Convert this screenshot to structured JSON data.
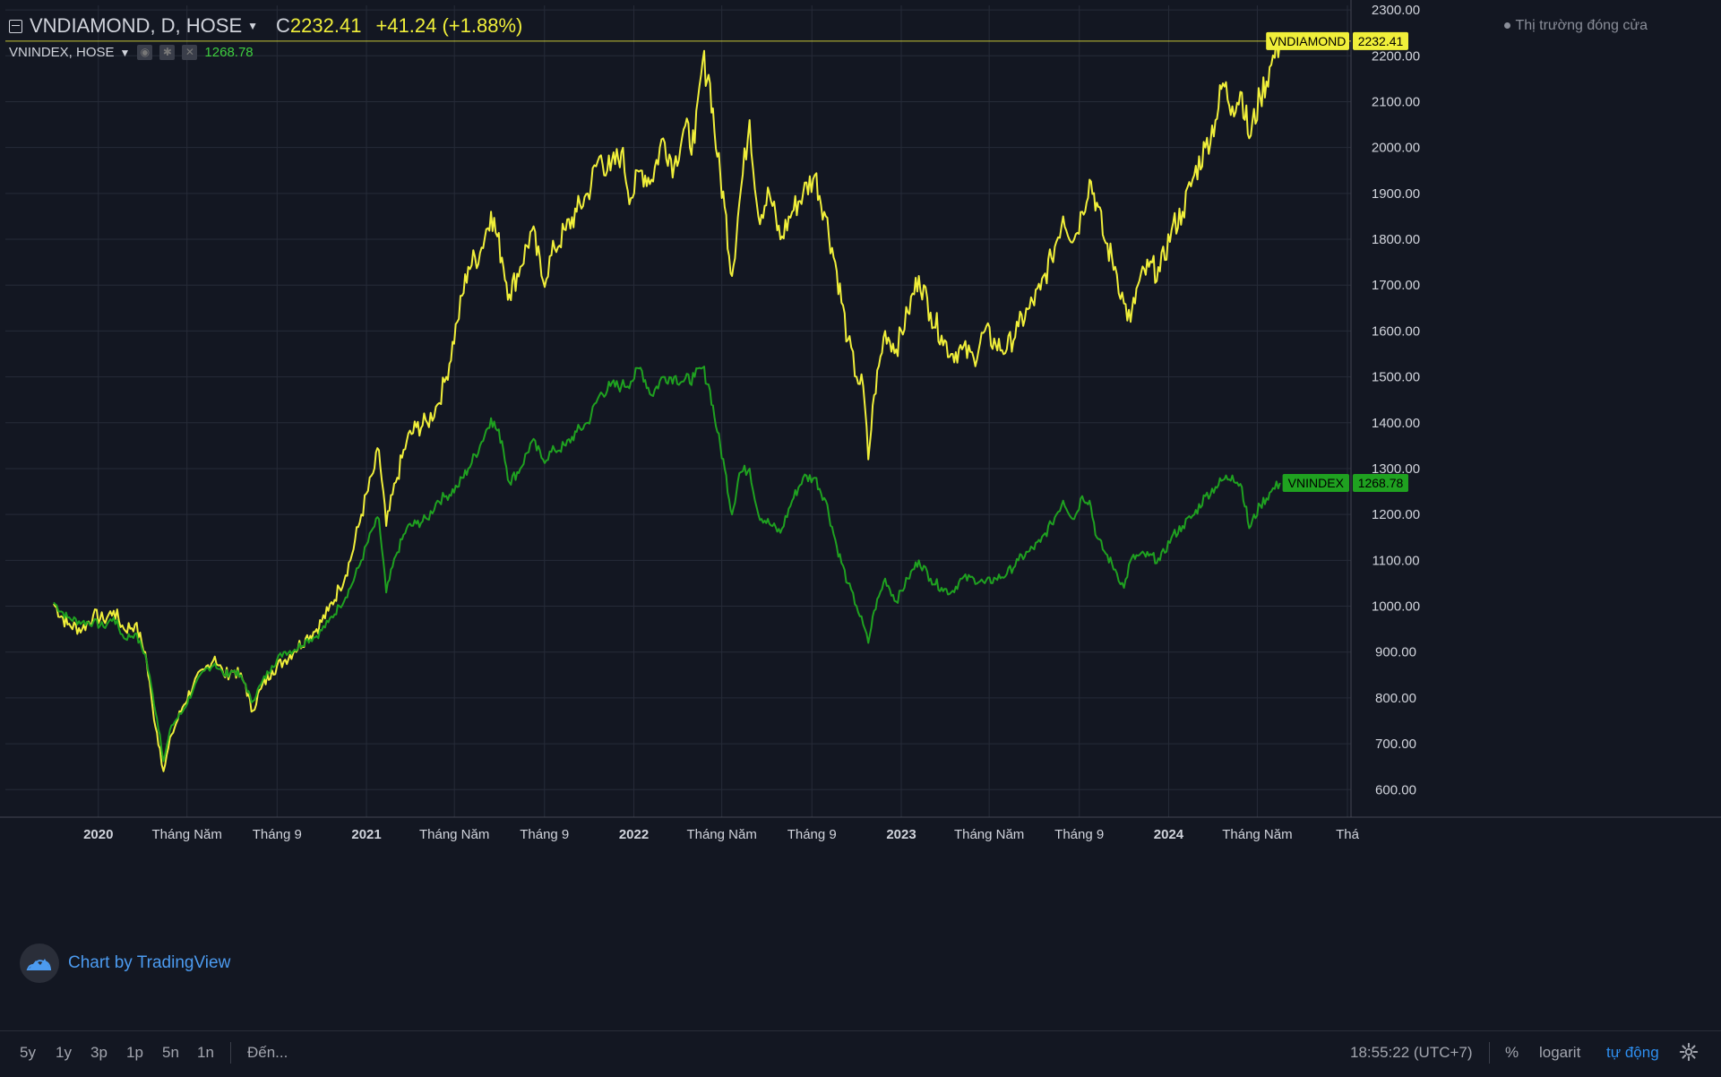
{
  "header": {
    "symbol": "VNDIAMOND, D, HOSE",
    "close_prefix": "C",
    "close_value": "2232.41",
    "change": "+41.24 (+1.88%)",
    "compare_symbol": "VNINDEX, HOSE",
    "compare_value": "1268.78",
    "market_status": "Thị trường đóng cửa"
  },
  "logo": {
    "text": "Chart by TradingView"
  },
  "bottom_bar": {
    "ranges": [
      "5y",
      "1y",
      "3p",
      "1p",
      "5n",
      "1n"
    ],
    "goto": "Đến...",
    "time": "18:55:22 (UTC+7)",
    "percent": "%",
    "log": "logarit",
    "auto": "tự động"
  },
  "colors": {
    "background": "#131722",
    "vndiamond": "#f0ef3a",
    "vnindex": "#1fa120",
    "grid": "#262b38",
    "logo": "#4c9bf0"
  },
  "chart_data": {
    "type": "line",
    "x_axis": {
      "type": "date",
      "range": [
        "2019-09-01",
        "2024-09-01"
      ]
    },
    "y_axis": {
      "position": "right",
      "range": [
        540,
        2310
      ],
      "ticks": [
        "600.00",
        "700.00",
        "800.00",
        "900.00",
        "1000.00",
        "1100.00",
        "1200.00",
        "1300.00",
        "1400.00",
        "1500.00",
        "1600.00",
        "1700.00",
        "1800.00",
        "1900.00",
        "2000.00",
        "2100.00",
        "2200.00",
        "2300.00"
      ]
    },
    "x_ticks": [
      {
        "label": "2020",
        "date": "2020-01-01",
        "bold": true
      },
      {
        "label": "Tháng Năm",
        "date": "2020-05-01",
        "bold": false
      },
      {
        "label": "Tháng 9",
        "date": "2020-09-01",
        "bold": false
      },
      {
        "label": "2021",
        "date": "2021-01-01",
        "bold": true
      },
      {
        "label": "Tháng Năm",
        "date": "2021-05-01",
        "bold": false
      },
      {
        "label": "Tháng 9",
        "date": "2021-09-01",
        "bold": false
      },
      {
        "label": "2022",
        "date": "2022-01-01",
        "bold": true
      },
      {
        "label": "Tháng Năm",
        "date": "2022-05-01",
        "bold": false
      },
      {
        "label": "Tháng 9",
        "date": "2022-09-01",
        "bold": false
      },
      {
        "label": "2023",
        "date": "2023-01-01",
        "bold": true
      },
      {
        "label": "Tháng Năm",
        "date": "2023-05-01",
        "bold": false
      },
      {
        "label": "Tháng 9",
        "date": "2023-09-01",
        "bold": false
      },
      {
        "label": "2024",
        "date": "2024-01-01",
        "bold": true
      },
      {
        "label": "Tháng Năm",
        "date": "2024-05-01",
        "bold": false
      },
      {
        "label": "Thá",
        "date": "2024-09-01",
        "bold": false
      }
    ],
    "grid": true,
    "series": [
      {
        "name": "VNDIAMOND",
        "color": "#f0ef3a",
        "last_value": "2232.41",
        "points": [
          [
            "2019-11-01",
            1005
          ],
          [
            "2019-11-20",
            960
          ],
          [
            "2019-12-10",
            950
          ],
          [
            "2019-12-25",
            980
          ],
          [
            "2020-01-08",
            970
          ],
          [
            "2020-01-22",
            990
          ],
          [
            "2020-02-05",
            950
          ],
          [
            "2020-02-20",
            960
          ],
          [
            "2020-03-05",
            900
          ],
          [
            "2020-03-15",
            780
          ],
          [
            "2020-03-25",
            690
          ],
          [
            "2020-03-30",
            640
          ],
          [
            "2020-04-10",
            720
          ],
          [
            "2020-04-25",
            780
          ],
          [
            "2020-05-10",
            830
          ],
          [
            "2020-05-25",
            860
          ],
          [
            "2020-06-08",
            890
          ],
          [
            "2020-06-20",
            850
          ],
          [
            "2020-07-05",
            860
          ],
          [
            "2020-07-20",
            830
          ],
          [
            "2020-07-28",
            770
          ],
          [
            "2020-08-10",
            820
          ],
          [
            "2020-08-25",
            860
          ],
          [
            "2020-09-10",
            880
          ],
          [
            "2020-09-25",
            905
          ],
          [
            "2020-10-10",
            930
          ],
          [
            "2020-10-25",
            950
          ],
          [
            "2020-11-10",
            990
          ],
          [
            "2020-11-25",
            1040
          ],
          [
            "2020-12-10",
            1100
          ],
          [
            "2020-12-25",
            1200
          ],
          [
            "2021-01-10",
            1290
          ],
          [
            "2021-01-18",
            1340
          ],
          [
            "2021-01-28",
            1175
          ],
          [
            "2021-02-10",
            1270
          ],
          [
            "2021-02-25",
            1360
          ],
          [
            "2021-03-10",
            1390
          ],
          [
            "2021-03-25",
            1400
          ],
          [
            "2021-04-08",
            1440
          ],
          [
            "2021-04-20",
            1500
          ],
          [
            "2021-05-05",
            1620
          ],
          [
            "2021-05-20",
            1740
          ],
          [
            "2021-06-05",
            1770
          ],
          [
            "2021-06-20",
            1860
          ],
          [
            "2021-07-05",
            1760
          ],
          [
            "2021-07-15",
            1680
          ],
          [
            "2021-07-30",
            1740
          ],
          [
            "2021-08-15",
            1820
          ],
          [
            "2021-08-30",
            1710
          ],
          [
            "2021-09-15",
            1780
          ],
          [
            "2021-09-30",
            1820
          ],
          [
            "2021-10-15",
            1860
          ],
          [
            "2021-10-30",
            1900
          ],
          [
            "2021-11-15",
            1980
          ],
          [
            "2021-11-30",
            1950
          ],
          [
            "2021-12-15",
            1990
          ],
          [
            "2021-12-28",
            1890
          ],
          [
            "2022-01-10",
            1950
          ],
          [
            "2022-01-25",
            1930
          ],
          [
            "2022-02-10",
            2020
          ],
          [
            "2022-02-25",
            1960
          ],
          [
            "2022-03-10",
            2040
          ],
          [
            "2022-03-25",
            2010
          ],
          [
            "2022-04-05",
            2190
          ],
          [
            "2022-04-15",
            2140
          ],
          [
            "2022-04-25",
            1980
          ],
          [
            "2022-05-05",
            1870
          ],
          [
            "2022-05-15",
            1720
          ],
          [
            "2022-05-25",
            1880
          ],
          [
            "2022-06-08",
            2060
          ],
          [
            "2022-06-20",
            1850
          ],
          [
            "2022-07-05",
            1900
          ],
          [
            "2022-07-20",
            1800
          ],
          [
            "2022-08-05",
            1860
          ],
          [
            "2022-08-20",
            1900
          ],
          [
            "2022-09-05",
            1940
          ],
          [
            "2022-09-20",
            1850
          ],
          [
            "2022-10-05",
            1730
          ],
          [
            "2022-10-20",
            1580
          ],
          [
            "2022-11-01",
            1500
          ],
          [
            "2022-11-10",
            1480
          ],
          [
            "2022-11-17",
            1320
          ],
          [
            "2022-11-25",
            1460
          ],
          [
            "2022-12-10",
            1600
          ],
          [
            "2022-12-25",
            1560
          ],
          [
            "2023-01-10",
            1640
          ],
          [
            "2023-01-25",
            1720
          ],
          [
            "2023-02-10",
            1640
          ],
          [
            "2023-02-25",
            1590
          ],
          [
            "2023-03-10",
            1550
          ],
          [
            "2023-03-25",
            1560
          ],
          [
            "2023-04-10",
            1540
          ],
          [
            "2023-04-25",
            1600
          ],
          [
            "2023-05-10",
            1570
          ],
          [
            "2023-05-25",
            1560
          ],
          [
            "2023-06-10",
            1610
          ],
          [
            "2023-06-25",
            1650
          ],
          [
            "2023-07-10",
            1690
          ],
          [
            "2023-07-25",
            1760
          ],
          [
            "2023-08-10",
            1850
          ],
          [
            "2023-08-25",
            1800
          ],
          [
            "2023-09-05",
            1860
          ],
          [
            "2023-09-15",
            1930
          ],
          [
            "2023-09-25",
            1880
          ],
          [
            "2023-10-05",
            1800
          ],
          [
            "2023-10-20",
            1740
          ],
          [
            "2023-11-01",
            1660
          ],
          [
            "2023-11-10",
            1620
          ],
          [
            "2023-11-20",
            1700
          ],
          [
            "2023-12-05",
            1740
          ],
          [
            "2023-12-20",
            1730
          ],
          [
            "2024-01-05",
            1820
          ],
          [
            "2024-01-20",
            1860
          ],
          [
            "2024-02-05",
            1940
          ],
          [
            "2024-02-20",
            2000
          ],
          [
            "2024-03-05",
            2060
          ],
          [
            "2024-03-15",
            2140
          ],
          [
            "2024-03-28",
            2090
          ],
          [
            "2024-04-10",
            2120
          ],
          [
            "2024-04-20",
            2020
          ],
          [
            "2024-05-05",
            2110
          ],
          [
            "2024-05-20",
            2180
          ],
          [
            "2024-06-01",
            2232
          ]
        ]
      },
      {
        "name": "VNINDEX",
        "color": "#1fa120",
        "last_value": "1268.78",
        "points": [
          [
            "2019-11-01",
            1008
          ],
          [
            "2019-11-20",
            975
          ],
          [
            "2019-12-10",
            965
          ],
          [
            "2019-12-25",
            965
          ],
          [
            "2020-01-08",
            955
          ],
          [
            "2020-01-22",
            975
          ],
          [
            "2020-02-05",
            930
          ],
          [
            "2020-02-20",
            940
          ],
          [
            "2020-03-05",
            895
          ],
          [
            "2020-03-15",
            810
          ],
          [
            "2020-03-25",
            720
          ],
          [
            "2020-03-30",
            662
          ],
          [
            "2020-04-10",
            740
          ],
          [
            "2020-04-25",
            770
          ],
          [
            "2020-05-10",
            820
          ],
          [
            "2020-05-25",
            860
          ],
          [
            "2020-06-08",
            875
          ],
          [
            "2020-06-20",
            850
          ],
          [
            "2020-07-05",
            860
          ],
          [
            "2020-07-20",
            830
          ],
          [
            "2020-07-28",
            790
          ],
          [
            "2020-08-10",
            830
          ],
          [
            "2020-08-25",
            870
          ],
          [
            "2020-09-10",
            900
          ],
          [
            "2020-09-25",
            905
          ],
          [
            "2020-10-10",
            925
          ],
          [
            "2020-10-25",
            935
          ],
          [
            "2020-11-10",
            965
          ],
          [
            "2020-11-25",
            1000
          ],
          [
            "2020-12-10",
            1040
          ],
          [
            "2020-12-25",
            1100
          ],
          [
            "2021-01-10",
            1170
          ],
          [
            "2021-01-18",
            1190
          ],
          [
            "2021-01-28",
            1030
          ],
          [
            "2021-02-10",
            1110
          ],
          [
            "2021-02-25",
            1170
          ],
          [
            "2021-03-10",
            1180
          ],
          [
            "2021-03-25",
            1190
          ],
          [
            "2021-04-08",
            1230
          ],
          [
            "2021-04-20",
            1240
          ],
          [
            "2021-05-05",
            1260
          ],
          [
            "2021-05-20",
            1300
          ],
          [
            "2021-06-05",
            1350
          ],
          [
            "2021-06-20",
            1410
          ],
          [
            "2021-07-05",
            1360
          ],
          [
            "2021-07-15",
            1270
          ],
          [
            "2021-07-30",
            1300
          ],
          [
            "2021-08-15",
            1360
          ],
          [
            "2021-08-30",
            1320
          ],
          [
            "2021-09-15",
            1340
          ],
          [
            "2021-09-30",
            1350
          ],
          [
            "2021-10-15",
            1380
          ],
          [
            "2021-10-30",
            1400
          ],
          [
            "2021-11-15",
            1460
          ],
          [
            "2021-11-30",
            1480
          ],
          [
            "2021-12-15",
            1480
          ],
          [
            "2021-12-28",
            1490
          ],
          [
            "2022-01-10",
            1520
          ],
          [
            "2022-01-25",
            1460
          ],
          [
            "2022-02-10",
            1500
          ],
          [
            "2022-02-25",
            1500
          ],
          [
            "2022-03-10",
            1490
          ],
          [
            "2022-03-25",
            1500
          ],
          [
            "2022-04-05",
            1520
          ],
          [
            "2022-04-15",
            1470
          ],
          [
            "2022-04-25",
            1380
          ],
          [
            "2022-05-05",
            1300
          ],
          [
            "2022-05-15",
            1200
          ],
          [
            "2022-05-25",
            1290
          ],
          [
            "2022-06-08",
            1300
          ],
          [
            "2022-06-20",
            1200
          ],
          [
            "2022-07-05",
            1180
          ],
          [
            "2022-07-20",
            1160
          ],
          [
            "2022-08-05",
            1230
          ],
          [
            "2022-08-20",
            1280
          ],
          [
            "2022-09-05",
            1280
          ],
          [
            "2022-09-20",
            1230
          ],
          [
            "2022-10-05",
            1130
          ],
          [
            "2022-10-20",
            1050
          ],
          [
            "2022-11-01",
            1000
          ],
          [
            "2022-11-10",
            960
          ],
          [
            "2022-11-17",
            920
          ],
          [
            "2022-11-25",
            990
          ],
          [
            "2022-12-10",
            1060
          ],
          [
            "2022-12-25",
            1010
          ],
          [
            "2023-01-10",
            1060
          ],
          [
            "2023-01-25",
            1100
          ],
          [
            "2023-02-10",
            1060
          ],
          [
            "2023-02-25",
            1040
          ],
          [
            "2023-03-10",
            1030
          ],
          [
            "2023-03-25",
            1060
          ],
          [
            "2023-04-10",
            1060
          ],
          [
            "2023-04-25",
            1050
          ],
          [
            "2023-05-10",
            1060
          ],
          [
            "2023-05-25",
            1070
          ],
          [
            "2023-06-10",
            1100
          ],
          [
            "2023-06-25",
            1120
          ],
          [
            "2023-07-10",
            1140
          ],
          [
            "2023-07-25",
            1180
          ],
          [
            "2023-08-10",
            1230
          ],
          [
            "2023-08-25",
            1190
          ],
          [
            "2023-09-05",
            1240
          ],
          [
            "2023-09-15",
            1230
          ],
          [
            "2023-09-25",
            1150
          ],
          [
            "2023-10-05",
            1120
          ],
          [
            "2023-10-20",
            1080
          ],
          [
            "2023-11-01",
            1040
          ],
          [
            "2023-11-10",
            1100
          ],
          [
            "2023-11-20",
            1110
          ],
          [
            "2023-12-05",
            1110
          ],
          [
            "2023-12-20",
            1100
          ],
          [
            "2024-01-05",
            1150
          ],
          [
            "2024-01-20",
            1175
          ],
          [
            "2024-02-05",
            1200
          ],
          [
            "2024-02-20",
            1240
          ],
          [
            "2024-03-05",
            1260
          ],
          [
            "2024-03-15",
            1275
          ],
          [
            "2024-03-28",
            1285
          ],
          [
            "2024-04-10",
            1260
          ],
          [
            "2024-04-20",
            1170
          ],
          [
            "2024-05-05",
            1220
          ],
          [
            "2024-05-20",
            1250
          ],
          [
            "2024-06-01",
            1268.78
          ]
        ]
      }
    ]
  }
}
